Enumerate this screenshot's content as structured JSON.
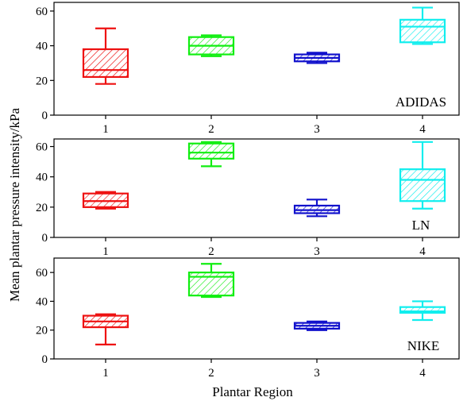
{
  "figure": {
    "ylabel": "Mean plantar pressure intensity/kPa",
    "xlabel": "Plantar  Region"
  },
  "colors": [
    "#ee1111",
    "#11ee11",
    "#1111cc",
    "#11eeee"
  ],
  "chart_data": [
    {
      "type": "box",
      "brand": "ADIDAS",
      "categories": [
        "1",
        "2",
        "3",
        "4"
      ],
      "yticks": [
        0,
        20,
        40,
        60
      ],
      "ylim": [
        0,
        65
      ],
      "boxes": [
        {
          "min": 18,
          "q1": 22,
          "median": 26,
          "q3": 38,
          "max": 50
        },
        {
          "min": 34,
          "q1": 35,
          "median": 40,
          "q3": 45,
          "max": 46
        },
        {
          "min": 30,
          "q1": 31,
          "median": 33,
          "q3": 35,
          "max": 36
        },
        {
          "min": 41,
          "q1": 42,
          "median": 51,
          "q3": 55,
          "max": 62
        }
      ]
    },
    {
      "type": "box",
      "brand": "LN",
      "categories": [
        "1",
        "2",
        "3",
        "4"
      ],
      "yticks": [
        0,
        20,
        40,
        60
      ],
      "ylim": [
        0,
        65
      ],
      "boxes": [
        {
          "min": 19,
          "q1": 20,
          "median": 24,
          "q3": 29,
          "max": 30
        },
        {
          "min": 47,
          "q1": 52,
          "median": 56,
          "q3": 62,
          "max": 63
        },
        {
          "min": 14,
          "q1": 16,
          "median": 18,
          "q3": 21,
          "max": 25
        },
        {
          "min": 19,
          "q1": 24,
          "median": 38,
          "q3": 45,
          "max": 63
        }
      ]
    },
    {
      "type": "box",
      "brand": "NIKE",
      "categories": [
        "1",
        "2",
        "3",
        "4"
      ],
      "yticks": [
        0,
        20,
        40,
        60
      ],
      "ylim": [
        0,
        70
      ],
      "boxes": [
        {
          "min": 10,
          "q1": 22,
          "median": 26,
          "q3": 30,
          "max": 31
        },
        {
          "min": 43,
          "q1": 44,
          "median": 57,
          "q3": 60,
          "max": 66
        },
        {
          "min": 20,
          "q1": 21,
          "median": 23,
          "q3": 25,
          "max": 26
        },
        {
          "min": 27,
          "q1": 32,
          "median": 33,
          "q3": 36,
          "max": 40
        }
      ]
    }
  ]
}
